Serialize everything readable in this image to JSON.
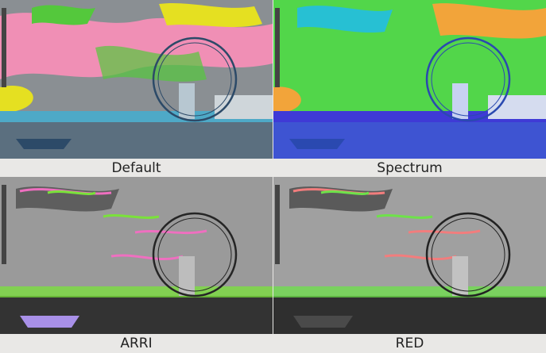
{
  "panels": [
    {
      "caption": "Default"
    },
    {
      "caption": "Spectrum"
    },
    {
      "caption": "ARRI"
    },
    {
      "caption": "RED"
    }
  ],
  "colors": {
    "default": {
      "sky": "#8a8f93",
      "a": "#f08fb5",
      "b": "#e5e021",
      "c": "#54c83c",
      "d": "#4ea9c7",
      "water": "#5b6f7f",
      "wheel": "#2c4a68"
    },
    "spectrum": {
      "sky": "#52d64a",
      "a": "#27c0d3",
      "b": "#f2a43a",
      "c": "#31c44b",
      "d": "#3f3ad6",
      "water": "#3e54d2",
      "wheel": "#2a49b0"
    },
    "arri": {
      "sky": "#9a9a9a",
      "a": "#ef6fc0",
      "b": "#7ae23a",
      "c": "#5e5e5e",
      "d": "#a890e8",
      "water": "#333",
      "wheel": "#252525"
    },
    "red": {
      "sky": "#a0a0a0",
      "a": "#f27d7d",
      "b": "#6ee24a",
      "c": "#5a5a5a",
      "d": "#4a4a4a",
      "water": "#2f2f2f",
      "wheel": "#222"
    }
  }
}
